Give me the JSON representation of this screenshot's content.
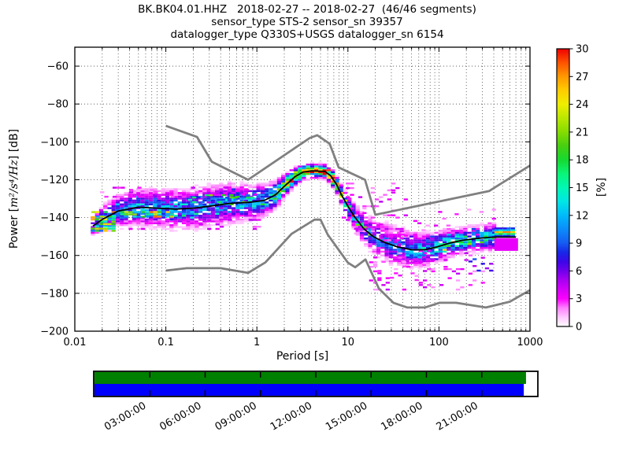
{
  "figure": {
    "background": "#ffffff"
  },
  "chart_data": {
    "type": "heatmap",
    "title": "BK.BK04.01.HHZ   2018-02-27 -- 2018-02-27  (46/46 segments)",
    "subtitle_lines": [
      "sensor_type STS-2 sensor_sn 39357",
      "datalogger_type Q330S+USGS datalogger_sn 6154"
    ],
    "xlabel": "Period [s]",
    "ylabel": {
      "pre": "Power [",
      "math": "m²/s⁴/Hz",
      "post": "] [dB]"
    },
    "x_axis": {
      "scale": "log",
      "min": 0.01,
      "max": 1000,
      "tick_values": [
        0.01,
        0.1,
        1,
        10,
        100,
        1000
      ],
      "tick_labels": [
        "0.01",
        "0.1",
        "1",
        "10",
        "100",
        "1000"
      ],
      "minor_grid": true
    },
    "y_axis": {
      "min": -200,
      "max": -50,
      "tick_values": [
        -60,
        -80,
        -100,
        -120,
        -140,
        -160,
        -180,
        -200
      ]
    },
    "grid": {
      "style": "dotted",
      "color": "#4a4a4a"
    },
    "colorbar": {
      "label": "[%]",
      "min": 0,
      "max": 30,
      "tick_values": [
        0,
        3,
        6,
        9,
        12,
        15,
        18,
        21,
        24,
        27,
        30
      ],
      "stops": [
        [
          0,
          "#ffffff"
        ],
        [
          1,
          "#ffc8ff"
        ],
        [
          2,
          "#ff80ff"
        ],
        [
          3,
          "#fb00ff"
        ],
        [
          4,
          "#d400f8"
        ],
        [
          5,
          "#a800f2"
        ],
        [
          6,
          "#7000ec"
        ],
        [
          7,
          "#3c06e8"
        ],
        [
          8,
          "#1727e8"
        ],
        [
          9,
          "#155bf2"
        ],
        [
          10.5,
          "#0c8cfa"
        ],
        [
          12,
          "#00bafa"
        ],
        [
          13.5,
          "#00e6e6"
        ],
        [
          15,
          "#00f8b4"
        ],
        [
          16.5,
          "#0af578"
        ],
        [
          18,
          "#16d930"
        ],
        [
          19.5,
          "#46cf10"
        ],
        [
          21,
          "#85dc00"
        ],
        [
          22.5,
          "#bae800"
        ],
        [
          24,
          "#eeee00"
        ],
        [
          25.5,
          "#ffcc00"
        ],
        [
          27,
          "#ff9800"
        ],
        [
          28.5,
          "#ff5200"
        ],
        [
          30,
          "#ee0000"
        ]
      ]
    },
    "noise_models": {
      "color": "#808080",
      "nhnm": [
        [
          0.1,
          -91.5
        ],
        [
          0.22,
          -97.4
        ],
        [
          0.32,
          -110.5
        ],
        [
          0.8,
          -120.0
        ],
        [
          3.8,
          -98.0
        ],
        [
          4.6,
          -96.5
        ],
        [
          6.3,
          -101.0
        ],
        [
          7.9,
          -113.5
        ],
        [
          15.4,
          -120.0
        ],
        [
          20.0,
          -138.5
        ],
        [
          354.8,
          -126.0
        ],
        [
          1000,
          -112.5
        ]
      ],
      "nlnm": [
        [
          0.1,
          -168.0
        ],
        [
          0.17,
          -166.7
        ],
        [
          0.4,
          -166.7
        ],
        [
          0.8,
          -169.2
        ],
        [
          1.24,
          -163.7
        ],
        [
          2.4,
          -148.6
        ],
        [
          4.3,
          -141.1
        ],
        [
          5.0,
          -141.1
        ],
        [
          6.0,
          -149.0
        ],
        [
          10.0,
          -163.8
        ],
        [
          12.0,
          -166.2
        ],
        [
          15.6,
          -162.1
        ],
        [
          21.9,
          -177.5
        ],
        [
          31.6,
          -185.0
        ],
        [
          45.0,
          -187.5
        ],
        [
          70.0,
          -187.5
        ],
        [
          101.0,
          -185.0
        ],
        [
          154.0,
          -185.0
        ],
        [
          328.0,
          -187.5
        ],
        [
          600.0,
          -184.4
        ],
        [
          1000,
          -178.3
        ]
      ]
    },
    "pdf": {
      "mode_color": "#000000",
      "bin": {
        "cols_per_decade": 22,
        "row_db": 1
      },
      "envelope": [
        [
          0.0158,
          -144.5,
          2.5,
          9
        ],
        [
          0.02,
          -141,
          3.5,
          9
        ],
        [
          0.03,
          -136.5,
          4.2,
          9
        ],
        [
          0.05,
          -134.5,
          4.5,
          10
        ],
        [
          0.08,
          -135,
          5,
          10
        ],
        [
          0.13,
          -135.5,
          5.3,
          9
        ],
        [
          0.2,
          -135,
          5.3,
          9
        ],
        [
          0.3,
          -134,
          5.3,
          9
        ],
        [
          0.5,
          -132.5,
          5,
          10
        ],
        [
          0.8,
          -132,
          4.5,
          11
        ],
        [
          1.2,
          -131,
          4,
          12
        ],
        [
          1.6,
          -128,
          3.5,
          15
        ],
        [
          2.0,
          -123.5,
          2.8,
          19
        ],
        [
          2.6,
          -118.5,
          2.2,
          25
        ],
        [
          3.2,
          -116,
          1.8,
          29
        ],
        [
          4.0,
          -115.3,
          1.6,
          30
        ],
        [
          5.6,
          -115.6,
          1.7,
          29
        ],
        [
          6.5,
          -118,
          1.9,
          27
        ],
        [
          7.5,
          -122.5,
          2.1,
          24
        ],
        [
          8.5,
          -128,
          2.4,
          19
        ],
        [
          10,
          -134,
          2.8,
          15
        ],
        [
          12,
          -140,
          3.2,
          12
        ],
        [
          15,
          -146,
          3.8,
          10
        ],
        [
          19,
          -150,
          4.4,
          8
        ],
        [
          25,
          -153,
          5,
          7.5
        ],
        [
          35,
          -155.5,
          5,
          8
        ],
        [
          50,
          -157,
          4.6,
          9
        ],
        [
          70,
          -157,
          4.2,
          11
        ],
        [
          95,
          -155.5,
          3.8,
          13
        ],
        [
          130,
          -153.5,
          3.4,
          14
        ],
        [
          180,
          -152,
          3.2,
          14
        ],
        [
          260,
          -151,
          3.2,
          13
        ],
        [
          400,
          -150.3,
          3.2,
          13
        ],
        [
          428,
          -150.3,
          3,
          13
        ],
        [
          700,
          -150.3,
          3,
          13
        ]
      ],
      "scatter_patches": [
        {
          "p0": 9,
          "p1": 45,
          "db0": -152,
          "db1": -121,
          "density": 0.13,
          "pct": 2.5
        },
        {
          "p0": 18,
          "p1": 320,
          "db0": -178,
          "db1": -157,
          "density": 0.1,
          "pct": 2.5
        },
        {
          "p0": 55,
          "p1": 420,
          "db0": -149,
          "db1": -135,
          "density": 0.06,
          "pct": 2.5
        },
        {
          "p0": 0.018,
          "p1": 1.5,
          "db0": -129,
          "db1": -123,
          "density": 0.1,
          "pct": 2.5
        },
        {
          "p0": 0.03,
          "p1": 1.2,
          "db0": -146,
          "db1": -141,
          "density": 0.12,
          "pct": 3
        },
        {
          "p0": 200,
          "p1": 430,
          "db0": -168,
          "db1": -161,
          "density": 0.22,
          "pct": 5
        },
        {
          "p0": 0.0158,
          "p1": 0.028,
          "db0": -147,
          "db1": -139,
          "density": 0.8,
          "pct": 15
        },
        {
          "p0": 0.016,
          "p1": 0.12,
          "db0": -139.5,
          "db1": -136.5,
          "density": 0.6,
          "pct": 16
        },
        {
          "p0": 0.15,
          "p1": 0.95,
          "db0": -133,
          "db1": -128,
          "density": 0.3,
          "pct": 12
        },
        {
          "p0": 20,
          "p1": 75,
          "db0": -173,
          "db1": -160,
          "density": 0.15,
          "pct": 2.5
        }
      ],
      "tail_block": {
        "p0": 428,
        "p1": 700,
        "rows": [
          [
            -145.7,
            8
          ],
          [
            -146.7,
            13
          ],
          [
            -147.7,
            24
          ],
          [
            -148.7,
            17
          ],
          [
            -149.7,
            8
          ]
        ],
        "block": {
          "db0": -157.6,
          "db1": -150.9,
          "pct": 3.5
        },
        "mode_db": -150.3
      }
    },
    "timeline": {
      "border_color": "#000000",
      "rows": [
        {
          "name": "segments-row",
          "color": "#008000",
          "fill_fraction": 0.975
        },
        {
          "name": "coverage-row",
          "color": "#0000ff",
          "fill_fraction": 0.97
        }
      ],
      "tick_labels": [
        "03:00:00",
        "06:00:00",
        "09:00:00",
        "12:00:00",
        "15:00:00",
        "18:00:00",
        "21:00:00"
      ],
      "n_intervals": 8
    }
  }
}
